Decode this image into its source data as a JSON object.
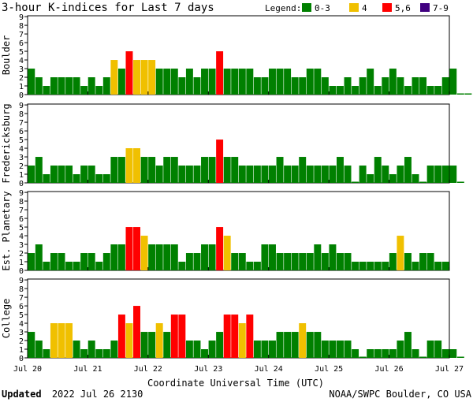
{
  "header": {
    "title": "3-hour K-indices for Last 7 days",
    "legend_label": "Legend:",
    "legend": [
      {
        "label": "0-3",
        "color": "#008000"
      },
      {
        "label": "4",
        "color": "#f0c000"
      },
      {
        "label": "5,6",
        "color": "#ff0000"
      },
      {
        "label": "7-9",
        "color": "#400080"
      }
    ]
  },
  "footer": {
    "updated_label": "Updated",
    "updated_time": "2022 Jul 26 2130",
    "credit": "NOAA/SWPC Boulder, CO USA"
  },
  "chart_data": {
    "type": "bar",
    "xlabel": "Coordinate Universal Time (UTC)",
    "x_tick_labels": [
      "Jul 20",
      "Jul 21",
      "Jul 22",
      "Jul 23",
      "Jul 24",
      "Jul 25",
      "Jul 26",
      "Jul 27"
    ],
    "ylim": [
      0,
      9
    ],
    "y_ticks": [
      0,
      1,
      2,
      3,
      4,
      5,
      6,
      7,
      8,
      9
    ],
    "grid": false,
    "bins_per_day": 8,
    "days": 7,
    "panels": [
      {
        "name": "Boulder",
        "values": [
          3,
          2,
          1,
          2,
          2,
          2,
          2,
          1,
          2,
          1,
          2,
          4,
          3,
          5,
          4,
          4,
          4,
          3,
          3,
          3,
          2,
          3,
          2,
          3,
          3,
          5,
          3,
          3,
          3,
          3,
          2,
          2,
          3,
          3,
          3,
          2,
          2,
          3,
          3,
          2,
          1,
          1,
          2,
          1,
          2,
          3,
          1,
          2,
          3,
          2,
          1,
          2,
          2,
          1,
          1,
          2,
          3,
          0,
          0
        ]
      },
      {
        "name": "Fredericksburg",
        "values": [
          2,
          3,
          1,
          2,
          2,
          2,
          1,
          2,
          2,
          1,
          1,
          3,
          3,
          4,
          4,
          3,
          3,
          2,
          3,
          3,
          2,
          2,
          2,
          3,
          3,
          5,
          3,
          3,
          2,
          2,
          2,
          2,
          2,
          3,
          2,
          2,
          3,
          2,
          2,
          2,
          2,
          3,
          2,
          0,
          2,
          1,
          3,
          2,
          1,
          2,
          3,
          1,
          0,
          2,
          2,
          2,
          2,
          0
        ]
      },
      {
        "name": "Est. Planetary",
        "values": [
          2,
          3,
          1,
          2,
          2,
          1,
          1,
          2,
          2,
          1,
          2,
          3,
          3,
          5,
          5,
          4,
          3,
          3,
          3,
          3,
          1,
          2,
          2,
          3,
          3,
          5,
          4,
          2,
          2,
          1,
          1,
          3,
          3,
          2,
          2,
          2,
          2,
          2,
          3,
          2,
          3,
          2,
          2,
          1,
          1,
          1,
          1,
          1,
          2,
          4,
          2,
          1,
          2,
          2,
          1,
          1
        ]
      },
      {
        "name": "College",
        "values": [
          3,
          2,
          1,
          4,
          4,
          4,
          2,
          1,
          2,
          1,
          1,
          2,
          5,
          4,
          6,
          3,
          3,
          4,
          3,
          5,
          5,
          2,
          2,
          1,
          2,
          3,
          5,
          5,
          4,
          5,
          2,
          2,
          2,
          3,
          3,
          3,
          4,
          3,
          3,
          2,
          2,
          2,
          2,
          1,
          0,
          1,
          1,
          1,
          1,
          2,
          3,
          1,
          0,
          2,
          2,
          1,
          1,
          0
        ]
      }
    ]
  }
}
